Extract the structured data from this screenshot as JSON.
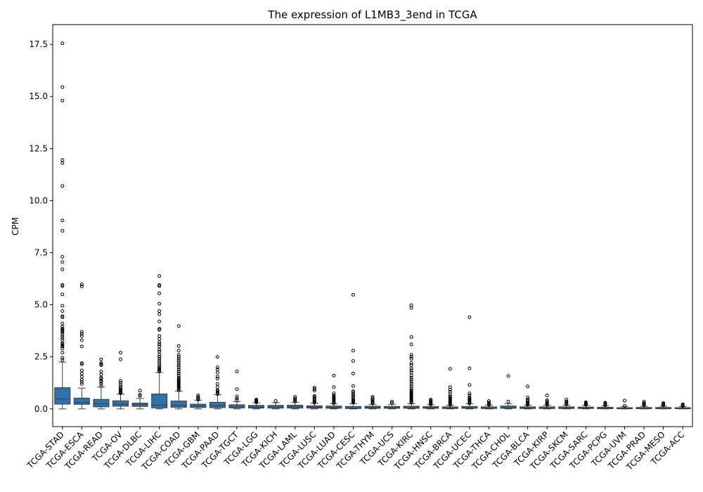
{
  "chart_data": {
    "type": "box",
    "title": "The expression of L1MB3_3end in TCGA",
    "xlabel": "",
    "ylabel": "CPM",
    "ylim": [
      -0.85,
      18.45
    ],
    "yticks": [
      0.0,
      2.5,
      5.0,
      7.5,
      10.0,
      12.5,
      15.0,
      17.5
    ],
    "ytick_labels": [
      "0.0",
      "2.5",
      "5.0",
      "7.5",
      "10.0",
      "12.5",
      "15.0",
      "17.5"
    ],
    "grid": false,
    "box_color": "#2e72ad",
    "categories": [
      "TCGA-STAD",
      "TCGA-ESCA",
      "TCGA-READ",
      "TCGA-OV",
      "TCGA-DLBC",
      "TCGA-LIHC",
      "TCGA-COAD",
      "TCGA-GBM",
      "TCGA-PAAD",
      "TCGA-TGCT",
      "TCGA-LGG",
      "TCGA-KICH",
      "TCGA-LAML",
      "TCGA-LUSC",
      "TCGA-LUAD",
      "TCGA-CESC",
      "TCGA-THYM",
      "TCGA-UCS",
      "TCGA-KIRC",
      "TCGA-HNSC",
      "TCGA-BRCA",
      "TCGA-UCEC",
      "TCGA-THCA",
      "TCGA-CHOL",
      "TCGA-BLCA",
      "TCGA-KIRP",
      "TCGA-SKCM",
      "TCGA-SARC",
      "TCGA-PCPG",
      "TCGA-UVM",
      "TCGA-PRAD",
      "TCGA-MESO",
      "TCGA-ACC"
    ],
    "boxes": [
      {
        "whislo": 0.0,
        "q1": 0.23,
        "med": 0.48,
        "q3": 1.02,
        "whishi": 2.25,
        "fliers": [
          17.55,
          15.45,
          14.8,
          11.95,
          11.8,
          10.7,
          9.05,
          8.55,
          7.3,
          7.05,
          6.7,
          5.95,
          5.9,
          5.5,
          4.95,
          4.7,
          4.45,
          4.4,
          4.1,
          3.95,
          3.85,
          3.8,
          3.75,
          3.7,
          3.6,
          3.5,
          3.4,
          3.3,
          3.15,
          3.1,
          3.05,
          3.0,
          2.9,
          2.7,
          2.45,
          2.35
        ]
      },
      {
        "whislo": 0.0,
        "q1": 0.22,
        "med": 0.3,
        "q3": 0.52,
        "whishi": 1.0,
        "fliers": [
          5.98,
          5.88,
          3.7,
          3.6,
          3.5,
          3.3,
          3.0,
          2.2,
          2.15,
          1.85,
          1.7,
          1.55,
          1.4,
          1.3,
          1.2
        ]
      },
      {
        "whislo": 0.0,
        "q1": 0.1,
        "med": 0.24,
        "q3": 0.46,
        "whishi": 1.05,
        "fliers": [
          2.38,
          2.2,
          2.15,
          2.1,
          1.8,
          1.65,
          1.5,
          1.45,
          1.35,
          1.3,
          1.2,
          1.1
        ]
      },
      {
        "whislo": 0.0,
        "q1": 0.13,
        "med": 0.23,
        "q3": 0.39,
        "whishi": 0.72,
        "fliers": [
          2.7,
          2.38,
          1.35,
          1.25,
          1.15,
          1.05,
          0.98,
          0.92,
          0.88,
          0.84,
          0.8,
          0.78,
          0.75
        ]
      },
      {
        "whislo": 0.0,
        "q1": 0.12,
        "med": 0.2,
        "q3": 0.28,
        "whishi": 0.5,
        "fliers": [
          0.88,
          0.68,
          0.62
        ]
      },
      {
        "whislo": 0.0,
        "q1": 0.05,
        "med": 0.18,
        "q3": 0.72,
        "whishi": 1.75,
        "fliers": [
          6.38,
          5.95,
          5.9,
          5.55,
          5.05,
          4.7,
          4.55,
          4.2,
          3.85,
          3.8,
          3.5,
          3.35,
          3.2,
          3.1,
          3.0,
          2.85,
          2.75,
          2.6,
          2.5,
          2.4,
          2.3,
          2.2,
          2.1,
          2.0,
          1.95,
          1.9,
          1.85,
          1.8
        ]
      },
      {
        "whislo": 0.0,
        "q1": 0.08,
        "med": 0.17,
        "q3": 0.38,
        "whishi": 0.85,
        "fliers": [
          3.98,
          3.02,
          2.8,
          2.6,
          2.5,
          2.4,
          2.3,
          2.2,
          2.1,
          2.0,
          1.9,
          1.8,
          1.7,
          1.6,
          1.5,
          1.45,
          1.4,
          1.35,
          1.3,
          1.25,
          1.2,
          1.15,
          1.1,
          1.05,
          1.0,
          0.95,
          0.9
        ]
      },
      {
        "whislo": 0.0,
        "q1": 0.07,
        "med": 0.14,
        "q3": 0.23,
        "whishi": 0.42,
        "fliers": [
          0.65,
          0.58,
          0.52,
          0.48,
          0.45
        ]
      },
      {
        "whislo": 0.0,
        "q1": 0.06,
        "med": 0.16,
        "q3": 0.32,
        "whishi": 0.68,
        "fliers": [
          2.5,
          2.0,
          1.9,
          1.75,
          1.55,
          1.45,
          1.2,
          1.05,
          0.9,
          0.85,
          0.8,
          0.75,
          0.72
        ]
      },
      {
        "whislo": 0.0,
        "q1": 0.05,
        "med": 0.1,
        "q3": 0.2,
        "whishi": 0.35,
        "fliers": [
          1.8,
          0.95,
          0.6,
          0.5,
          0.42
        ]
      },
      {
        "whislo": 0.0,
        "q1": 0.04,
        "med": 0.09,
        "q3": 0.17,
        "whishi": 0.3,
        "fliers": [
          0.45,
          0.42,
          0.4,
          0.38,
          0.36,
          0.34,
          0.32
        ]
      },
      {
        "whislo": 0.0,
        "q1": 0.04,
        "med": 0.1,
        "q3": 0.17,
        "whishi": 0.3,
        "fliers": [
          0.38
        ]
      },
      {
        "whislo": 0.0,
        "q1": 0.04,
        "med": 0.1,
        "q3": 0.18,
        "whishi": 0.32,
        "fliers": [
          0.58,
          0.5,
          0.45,
          0.4,
          0.36
        ]
      },
      {
        "whislo": 0.0,
        "q1": 0.04,
        "med": 0.08,
        "q3": 0.15,
        "whishi": 0.28,
        "fliers": [
          1.02,
          0.95,
          0.88,
          0.62,
          0.58,
          0.52,
          0.45,
          0.4,
          0.35,
          0.32,
          0.3
        ]
      },
      {
        "whislo": 0.0,
        "q1": 0.03,
        "med": 0.07,
        "q3": 0.14,
        "whishi": 0.25,
        "fliers": [
          1.6,
          1.05,
          0.75,
          0.65,
          0.6,
          0.55,
          0.5,
          0.45,
          0.4,
          0.35,
          0.3,
          0.28
        ]
      },
      {
        "whislo": 0.0,
        "q1": 0.02,
        "med": 0.05,
        "q3": 0.12,
        "whishi": 0.25,
        "fliers": [
          5.48,
          2.8,
          2.3,
          1.7,
          1.1,
          0.85,
          0.8,
          0.7,
          0.62,
          0.55,
          0.48,
          0.42,
          0.38,
          0.35,
          0.32,
          0.3
        ]
      },
      {
        "whislo": 0.0,
        "q1": 0.03,
        "med": 0.07,
        "q3": 0.13,
        "whishi": 0.22,
        "fliers": [
          0.58,
          0.52,
          0.45,
          0.4,
          0.35,
          0.3,
          0.27
        ]
      },
      {
        "whislo": 0.0,
        "q1": 0.03,
        "med": 0.07,
        "q3": 0.12,
        "whishi": 0.22,
        "fliers": [
          0.35,
          0.28
        ]
      },
      {
        "whislo": 0.0,
        "q1": 0.03,
        "med": 0.06,
        "q3": 0.13,
        "whishi": 0.25,
        "fliers": [
          4.98,
          4.85,
          3.45,
          3.1,
          2.6,
          2.5,
          2.4,
          2.2,
          2.1,
          1.95,
          1.85,
          1.75,
          1.6,
          1.5,
          1.4,
          1.3,
          1.2,
          1.1,
          1.0,
          0.9,
          0.85,
          0.8,
          0.75,
          0.7,
          0.65,
          0.6,
          0.55,
          0.5,
          0.45,
          0.4,
          0.35,
          0.3
        ]
      },
      {
        "whislo": 0.0,
        "q1": 0.03,
        "med": 0.06,
        "q3": 0.11,
        "whishi": 0.2,
        "fliers": [
          0.45,
          0.4,
          0.36,
          0.32,
          0.28,
          0.25,
          0.22
        ]
      },
      {
        "whislo": 0.0,
        "q1": 0.02,
        "med": 0.05,
        "q3": 0.1,
        "whishi": 0.18,
        "fliers": [
          1.92,
          1.05,
          0.92,
          0.82,
          0.7,
          0.6,
          0.55,
          0.5,
          0.45,
          0.4,
          0.35,
          0.3,
          0.26,
          0.22,
          0.2
        ]
      },
      {
        "whislo": 0.0,
        "q1": 0.03,
        "med": 0.06,
        "q3": 0.12,
        "whishi": 0.25,
        "fliers": [
          4.4,
          1.95,
          1.15,
          0.75,
          0.65,
          0.55,
          0.5,
          0.45,
          0.4,
          0.35,
          0.3,
          0.27
        ]
      },
      {
        "whislo": 0.0,
        "q1": 0.02,
        "med": 0.05,
        "q3": 0.1,
        "whishi": 0.18,
        "fliers": [
          0.38,
          0.3,
          0.26,
          0.22,
          0.2
        ]
      },
      {
        "whislo": 0.0,
        "q1": 0.03,
        "med": 0.07,
        "q3": 0.14,
        "whishi": 0.25,
        "fliers": [
          1.58,
          0.35
        ]
      },
      {
        "whislo": 0.0,
        "q1": 0.02,
        "med": 0.05,
        "q3": 0.1,
        "whishi": 0.18,
        "fliers": [
          1.08,
          0.55,
          0.45,
          0.38,
          0.32,
          0.28,
          0.24,
          0.2
        ]
      },
      {
        "whislo": 0.0,
        "q1": 0.02,
        "med": 0.05,
        "q3": 0.1,
        "whishi": 0.18,
        "fliers": [
          0.65,
          0.42,
          0.36,
          0.3,
          0.26,
          0.22,
          0.2
        ]
      },
      {
        "whislo": 0.0,
        "q1": 0.02,
        "med": 0.05,
        "q3": 0.1,
        "whishi": 0.18,
        "fliers": [
          0.45,
          0.36,
          0.3,
          0.26,
          0.22
        ]
      },
      {
        "whislo": 0.0,
        "q1": 0.02,
        "med": 0.05,
        "q3": 0.09,
        "whishi": 0.17,
        "fliers": [
          0.32,
          0.28,
          0.25,
          0.22,
          0.2
        ]
      },
      {
        "whislo": 0.0,
        "q1": 0.01,
        "med": 0.04,
        "q3": 0.08,
        "whishi": 0.15,
        "fliers": [
          0.3,
          0.26,
          0.22,
          0.18
        ]
      },
      {
        "whislo": 0.0,
        "q1": 0.01,
        "med": 0.03,
        "q3": 0.06,
        "whishi": 0.12,
        "fliers": [
          0.4,
          0.15
        ]
      },
      {
        "whislo": 0.0,
        "q1": 0.01,
        "med": 0.03,
        "q3": 0.07,
        "whishi": 0.13,
        "fliers": [
          0.35,
          0.28,
          0.24,
          0.2,
          0.17
        ]
      },
      {
        "whislo": 0.0,
        "q1": 0.01,
        "med": 0.03,
        "q3": 0.07,
        "whishi": 0.13,
        "fliers": [
          0.28,
          0.24,
          0.2,
          0.17
        ]
      },
      {
        "whislo": 0.0,
        "q1": 0.01,
        "med": 0.03,
        "q3": 0.06,
        "whishi": 0.12,
        "fliers": [
          0.22,
          0.19,
          0.16,
          0.14
        ]
      }
    ]
  }
}
